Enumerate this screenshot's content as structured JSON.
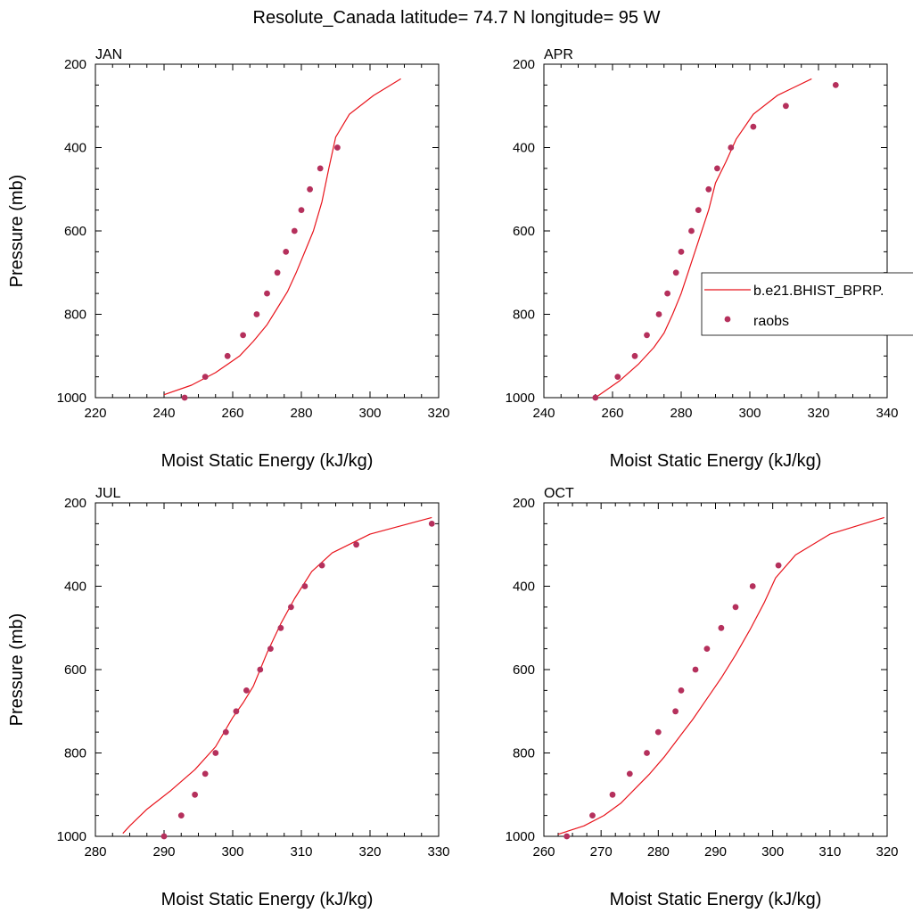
{
  "title": "Resolute_Canada  latitude= 74.7 N longitude= 95 W",
  "colors": {
    "model_line": "#e8141c",
    "raobs_marker": "#b5305c",
    "axes": "#000000",
    "background": "#ffffff"
  },
  "legend": {
    "placement": "right edge of APR panel",
    "model_label": "b.e21.BHIST_BPRP.",
    "obs_label": "raobs"
  },
  "chart_data": [
    {
      "type": "line",
      "panel": "JAN",
      "xlabel": "Moist Static Energy (kJ/kg)",
      "ylabel": "Pressure (mb)",
      "xlim": [
        220,
        320
      ],
      "ylim": [
        1000,
        200
      ],
      "xticks": [
        220,
        240,
        260,
        280,
        300,
        320
      ],
      "yticks": [
        200,
        400,
        600,
        800,
        1000
      ],
      "grid": false,
      "series": [
        {
          "name": "b.e21.BHIST_BPRP.",
          "style": "line",
          "x": [
            240,
            248,
            255,
            262,
            266,
            270,
            273,
            276,
            278.5,
            281,
            283.5,
            286,
            288,
            290,
            294,
            301,
            309
          ],
          "y": [
            993,
            970,
            940,
            900,
            865,
            825,
            785,
            745,
            700,
            650,
            600,
            530,
            450,
            375,
            320,
            275,
            235
          ]
        },
        {
          "name": "raobs",
          "style": "markers",
          "x": [
            246,
            252,
            258.5,
            263,
            267,
            270,
            273,
            275.5,
            278,
            280,
            282.5,
            285.5,
            290.5
          ],
          "y": [
            1000,
            950,
            900,
            850,
            800,
            750,
            700,
            650,
            600,
            550,
            500,
            450,
            400
          ]
        }
      ]
    },
    {
      "type": "line",
      "panel": "APR",
      "xlabel": "Moist Static Energy (kJ/kg)",
      "ylabel": "",
      "xlim": [
        240,
        340
      ],
      "ylim": [
        1000,
        200
      ],
      "xticks": [
        240,
        260,
        280,
        300,
        320,
        340
      ],
      "yticks": [
        200,
        400,
        600,
        800,
        1000
      ],
      "grid": false,
      "series": [
        {
          "name": "b.e21.BHIST_BPRP.",
          "style": "line",
          "x": [
            255,
            262,
            267.5,
            272,
            275,
            277.5,
            280,
            282,
            284,
            286,
            288,
            290,
            293,
            296,
            301,
            308,
            318
          ],
          "y": [
            1000,
            960,
            920,
            880,
            845,
            800,
            750,
            700,
            650,
            600,
            550,
            485,
            435,
            380,
            320,
            275,
            235
          ]
        },
        {
          "name": "raobs",
          "style": "markers",
          "x": [
            255,
            261.5,
            266.5,
            270,
            273.5,
            276,
            278.5,
            280,
            283,
            285,
            288,
            290.5,
            294.5,
            301,
            310.5,
            325
          ],
          "y": [
            1000,
            950,
            900,
            850,
            800,
            750,
            700,
            650,
            600,
            550,
            500,
            450,
            400,
            350,
            300,
            250
          ]
        }
      ]
    },
    {
      "type": "line",
      "panel": "JUL",
      "xlabel": "Moist Static Energy (kJ/kg)",
      "ylabel": "Pressure (mb)",
      "xlim": [
        280,
        330
      ],
      "ylim": [
        1000,
        200
      ],
      "xticks": [
        280,
        290,
        300,
        310,
        320,
        330
      ],
      "yticks": [
        200,
        400,
        600,
        800,
        1000
      ],
      "grid": false,
      "series": [
        {
          "name": "b.e21.BHIST_BPRP.",
          "style": "line",
          "x": [
            284,
            285,
            287.5,
            291,
            294.5,
            297.5,
            300,
            301.5,
            303,
            305,
            307,
            309,
            311.5,
            314.5,
            320,
            329
          ],
          "y": [
            993,
            975,
            935,
            890,
            840,
            785,
            715,
            680,
            640,
            560,
            490,
            430,
            365,
            320,
            275,
            235
          ]
        },
        {
          "name": "raobs",
          "style": "markers",
          "x": [
            290,
            292.5,
            294.5,
            296,
            297.5,
            299,
            300.5,
            302,
            304,
            305.5,
            307,
            308.5,
            310.5,
            313,
            318,
            329
          ],
          "y": [
            1000,
            950,
            900,
            850,
            800,
            750,
            700,
            650,
            600,
            550,
            500,
            450,
            400,
            350,
            300,
            250
          ]
        }
      ]
    },
    {
      "type": "line",
      "panel": "OCT",
      "xlabel": "Moist Static Energy (kJ/kg)",
      "ylabel": "",
      "xlim": [
        260,
        320
      ],
      "ylim": [
        1000,
        200
      ],
      "xticks": [
        260,
        270,
        280,
        290,
        300,
        310,
        320
      ],
      "yticks": [
        200,
        400,
        600,
        800,
        1000
      ],
      "grid": false,
      "series": [
        {
          "name": "b.e21.BHIST_BPRP.",
          "style": "line",
          "x": [
            262.5,
            267,
            270.5,
            273.5,
            276,
            278.5,
            281,
            283.5,
            286,
            288.5,
            291,
            293.5,
            296,
            298.5,
            300.5,
            304,
            310,
            319.5
          ],
          "y": [
            995,
            975,
            950,
            920,
            885,
            850,
            810,
            765,
            720,
            670,
            620,
            565,
            505,
            440,
            380,
            325,
            275,
            235
          ]
        },
        {
          "name": "raobs",
          "style": "markers",
          "x": [
            264,
            268.5,
            272,
            275,
            278,
            280,
            283,
            284,
            286.5,
            288.5,
            291,
            293.5,
            296.5,
            301
          ],
          "y": [
            1000,
            950,
            900,
            850,
            800,
            750,
            700,
            650,
            600,
            550,
            500,
            450,
            400,
            350
          ]
        }
      ]
    }
  ]
}
